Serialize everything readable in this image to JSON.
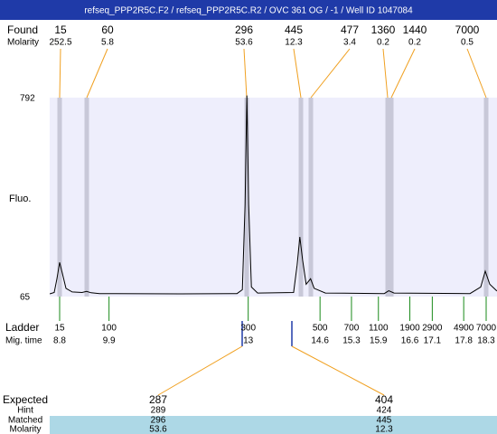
{
  "header": {
    "title": "refseq_PPP2R5C.F2 / refseq_PPP2R5C.R2 / OVC 361 OG / -1 / Well ID 1047084"
  },
  "found": {
    "label": "Found",
    "sizes": [
      15,
      60,
      296,
      445,
      477,
      1360,
      1440,
      7000
    ],
    "molarity_label": "Molarity",
    "molarity": [
      252.5,
      5.8,
      53.6,
      12.3,
      3.4,
      0.2,
      0.2,
      0.5
    ]
  },
  "plot": {
    "y_label": "Fluo.",
    "yticks": [
      792,
      65
    ],
    "trace": {
      "mig_time": [
        8.58,
        8.68,
        8.74,
        8.8,
        8.86,
        8.94,
        9.08,
        9.3,
        9.4,
        9.5,
        9.69,
        11.5,
        12.75,
        12.87,
        12.93,
        12.97,
        13.01,
        13.07,
        13.21,
        14.01,
        14.09,
        14.15,
        14.21,
        14.29,
        14.39,
        14.47,
        14.72,
        16.03,
        16.13,
        16.25,
        17.94,
        18.18,
        18.28,
        18.38,
        18.54
      ],
      "fluo": [
        75,
        80,
        130,
        190,
        150,
        95,
        82,
        80,
        84,
        79,
        76,
        75,
        76,
        90,
        400,
        800,
        400,
        100,
        78,
        80,
        180,
        283,
        200,
        110,
        130,
        95,
        78,
        76,
        86,
        78,
        76,
        100,
        158,
        110,
        85
      ]
    }
  },
  "ladder": {
    "label": "Ladder",
    "sizes": [
      15,
      100,
      300,
      500,
      700,
      1100,
      1900,
      2900,
      4900,
      7000
    ],
    "mig_label": "Mig. time",
    "mig_time": [
      8.8,
      9.9,
      13,
      14.6,
      15.3,
      15.9,
      16.6,
      17.1,
      17.8,
      18.3
    ]
  },
  "expected": {
    "rows": [
      {
        "label": "Expected",
        "values": [
          287,
          404
        ]
      },
      {
        "label": "Hint",
        "values": [
          289,
          424
        ]
      },
      {
        "label": "Matched",
        "values": [
          296,
          445
        ]
      },
      {
        "label": "Molarity",
        "values": [
          53.6,
          12.3
        ]
      }
    ]
  }
}
